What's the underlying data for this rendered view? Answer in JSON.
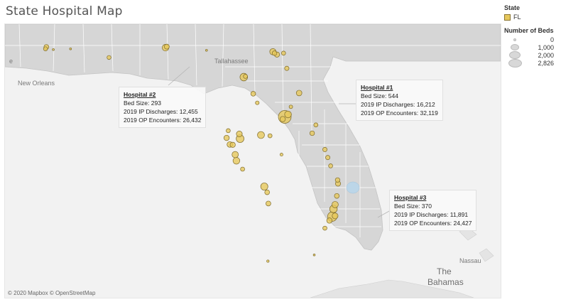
{
  "title": "State Hospital Map",
  "attribution": "© 2020 Mapbox © OpenStreetMap",
  "legend": {
    "state_title": "State",
    "state_items": [
      {
        "label": "FL",
        "color": "#e6c85c"
      }
    ],
    "beds_title": "Number of Beds",
    "beds_items": [
      {
        "label": "0",
        "value": 0
      },
      {
        "label": "1,000",
        "value": 1000
      },
      {
        "label": "2,000",
        "value": 2000
      },
      {
        "label": "2,826",
        "value": 2826
      }
    ]
  },
  "place_labels": {
    "new_orleans": "New Orleans",
    "tallahassee": "Tallahassee",
    "nassau": "Nassau",
    "bahamas_1": "The",
    "bahamas_2": "Bahamas"
  },
  "callouts": [
    {
      "name": "Hospital #2",
      "bed_size": "Bed Size: 293",
      "ip": "2019 IP Discharges: 12,455",
      "op": "2019 OP Encounters: 26,432"
    },
    {
      "name": "Hospital #1",
      "bed_size": "Bed Size: 544",
      "ip": "2019 IP Discharges: 16,212",
      "op": "2019 OP Encounters: 32,119"
    },
    {
      "name": "Hospital #3",
      "bed_size": "Bed Size: 370",
      "ip": "2019 IP Discharges: 11,891",
      "op": "2019 OP Encounters: 24,427"
    }
  ],
  "colors": {
    "land": "#d6d6d6",
    "water": "#f2f2f2",
    "marker_fill": "#e6c85c",
    "marker_stroke": "#7d6a2a"
  },
  "hospitals": [
    {
      "lon": -87.21,
      "lat": 30.42,
      "beds": 293
    },
    {
      "lon": -87.19,
      "lat": 30.47,
      "beds": 410
    },
    {
      "lon": -87.02,
      "lat": 30.4,
      "beds": 60
    },
    {
      "lon": -86.6,
      "lat": 30.42,
      "beds": 50
    },
    {
      "lon": -85.66,
      "lat": 30.18,
      "beds": 280
    },
    {
      "lon": -84.28,
      "lat": 30.45,
      "beds": 770
    },
    {
      "lon": -84.25,
      "lat": 30.48,
      "beds": 430
    },
    {
      "lon": -83.28,
      "lat": 30.38,
      "beds": 60
    },
    {
      "lon": -82.37,
      "lat": 29.64,
      "beds": 1000
    },
    {
      "lon": -82.33,
      "lat": 29.66,
      "beds": 300
    },
    {
      "lon": -81.66,
      "lat": 30.34,
      "beds": 695
    },
    {
      "lon": -81.56,
      "lat": 30.26,
      "beds": 480
    },
    {
      "lon": -81.62,
      "lat": 30.3,
      "beds": 380
    },
    {
      "lon": -81.4,
      "lat": 30.3,
      "beds": 300
    },
    {
      "lon": -81.32,
      "lat": 29.88,
      "beds": 330
    },
    {
      "lon": -82.14,
      "lat": 29.18,
      "beds": 400
    },
    {
      "lon": -82.04,
      "lat": 28.93,
      "beds": 240
    },
    {
      "lon": -81.02,
      "lat": 29.2,
      "beds": 544
    },
    {
      "lon": -81.22,
      "lat": 28.82,
      "beds": 220
    },
    {
      "lon": -81.37,
      "lat": 28.54,
      "beds": 2826
    },
    {
      "lon": -81.29,
      "lat": 28.61,
      "beds": 800
    },
    {
      "lon": -81.42,
      "lat": 28.48,
      "beds": 500
    },
    {
      "lon": -80.7,
      "lat": 28.09,
      "beds": 380
    },
    {
      "lon": -80.61,
      "lat": 28.32,
      "beds": 300
    },
    {
      "lon": -81.95,
      "lat": 28.04,
      "beds": 850
    },
    {
      "lon": -81.73,
      "lat": 28.02,
      "beds": 300
    },
    {
      "lon": -82.46,
      "lat": 27.94,
      "beds": 1040
    },
    {
      "lon": -82.48,
      "lat": 28.07,
      "beds": 600
    },
    {
      "lon": -82.71,
      "lat": 27.78,
      "beds": 560
    },
    {
      "lon": -82.64,
      "lat": 27.77,
      "beds": 480
    },
    {
      "lon": -82.79,
      "lat": 27.96,
      "beds": 500
    },
    {
      "lon": -82.75,
      "lat": 28.16,
      "beds": 300
    },
    {
      "lon": -82.58,
      "lat": 27.5,
      "beds": 700
    },
    {
      "lon": -82.55,
      "lat": 27.33,
      "beds": 800
    },
    {
      "lon": -82.4,
      "lat": 27.1,
      "beds": 300
    },
    {
      "lon": -81.87,
      "lat": 26.62,
      "beds": 900
    },
    {
      "lon": -81.8,
      "lat": 26.46,
      "beds": 400
    },
    {
      "lon": -81.77,
      "lat": 26.15,
      "beds": 420
    },
    {
      "lon": -81.45,
      "lat": 27.5,
      "beds": 150
    },
    {
      "lon": -80.39,
      "lat": 27.64,
      "beds": 340
    },
    {
      "lon": -80.32,
      "lat": 27.42,
      "beds": 330
    },
    {
      "lon": -80.25,
      "lat": 27.19,
      "beds": 300
    },
    {
      "lon": -80.08,
      "lat": 26.8,
      "beds": 370
    },
    {
      "lon": -80.07,
      "lat": 26.7,
      "beds": 460
    },
    {
      "lon": -80.1,
      "lat": 26.36,
      "beds": 400
    },
    {
      "lon": -80.14,
      "lat": 26.12,
      "beds": 700
    },
    {
      "lon": -80.18,
      "lat": 26.0,
      "beds": 1000
    },
    {
      "lon": -80.21,
      "lat": 25.79,
      "beds": 1550
    },
    {
      "lon": -80.28,
      "lat": 25.68,
      "beds": 500
    },
    {
      "lon": -80.14,
      "lat": 25.81,
      "beds": 600
    },
    {
      "lon": -80.39,
      "lat": 25.47,
      "beds": 300
    },
    {
      "lon": -81.78,
      "lat": 24.56,
      "beds": 100
    },
    {
      "lon": -80.65,
      "lat": 24.73,
      "beds": 50
    }
  ]
}
